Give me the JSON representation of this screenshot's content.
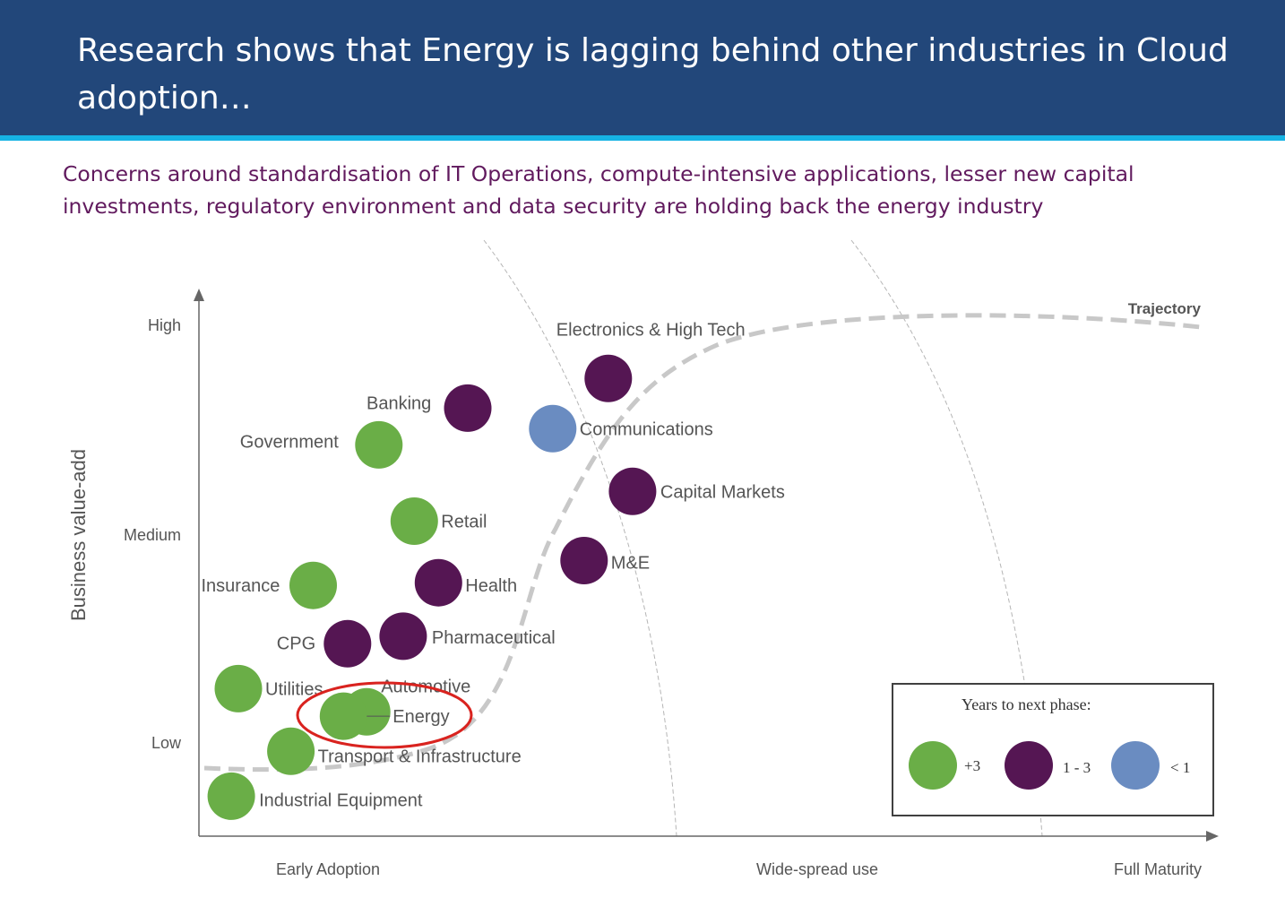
{
  "header": {
    "title": "Research shows that Energy is lagging behind other industries in Cloud adoption…",
    "subtitle": "Concerns around standardisation of IT Operations, compute-intensive applications, lesser new capital investments, regulatory environment and data security are holding back the energy industry"
  },
  "colors": {
    "banner": "#22477a",
    "stripe": "#16b3e4",
    "subtitle": "#611a5e",
    "plus3": "#6aae47",
    "one_to_three": "#551653",
    "less_than_one": "#6a8cc1",
    "highlight": "#d9231f",
    "trajectory": "#c8c8c8"
  },
  "chart_data": {
    "type": "scatter",
    "ylabel": "Business value-add",
    "y_ticks": [
      "High",
      "Medium",
      "Low"
    ],
    "x_ticks": [
      "Early Adoption",
      "Wide-spread use",
      "Full Maturity"
    ],
    "trajectory_label": "Trajectory",
    "x_range": [
      0,
      100
    ],
    "y_range": [
      0,
      100
    ],
    "points": [
      {
        "name": "Electronics & High Tech",
        "x": 40.5,
        "y": 84.7,
        "group": "1 - 3"
      },
      {
        "name": "Banking",
        "x": 26.6,
        "y": 79.2,
        "group": "1 - 3"
      },
      {
        "name": "Communications",
        "x": 35.0,
        "y": 75.4,
        "group": "< 1"
      },
      {
        "name": "Government",
        "x": 17.8,
        "y": 72.4,
        "group": "+3"
      },
      {
        "name": "Capital Markets",
        "x": 42.9,
        "y": 63.8,
        "group": "1 - 3"
      },
      {
        "name": "Retail",
        "x": 21.3,
        "y": 58.3,
        "group": "+3"
      },
      {
        "name": "M&E",
        "x": 38.1,
        "y": 51.0,
        "group": "1 - 3"
      },
      {
        "name": "Insurance",
        "x": 11.3,
        "y": 46.4,
        "group": "+3"
      },
      {
        "name": "Health",
        "x": 23.7,
        "y": 46.9,
        "group": "1 - 3"
      },
      {
        "name": "Pharmaceutical",
        "x": 20.2,
        "y": 37.0,
        "group": "1 - 3"
      },
      {
        "name": "CPG",
        "x": 14.7,
        "y": 35.6,
        "group": "1 - 3"
      },
      {
        "name": "Utilities",
        "x": 3.9,
        "y": 27.3,
        "group": "+3"
      },
      {
        "name": "Automotive",
        "x": 16.6,
        "y": 23.0,
        "group": "+3"
      },
      {
        "name": "Energy",
        "x": 14.3,
        "y": 22.2,
        "group": "+3"
      },
      {
        "name": "Transport & Infrastructure",
        "x": 9.1,
        "y": 15.7,
        "group": "+3"
      },
      {
        "name": "Industrial Equipment",
        "x": 3.2,
        "y": 7.4,
        "group": "+3"
      }
    ],
    "highlight": "Energy",
    "legend": {
      "title": "Years to next phase:",
      "items": [
        {
          "label": "+3",
          "group": "+3"
        },
        {
          "label": "1 - 3",
          "group": "1 - 3"
        },
        {
          "label": "< 1",
          "group": "< 1"
        }
      ]
    }
  }
}
